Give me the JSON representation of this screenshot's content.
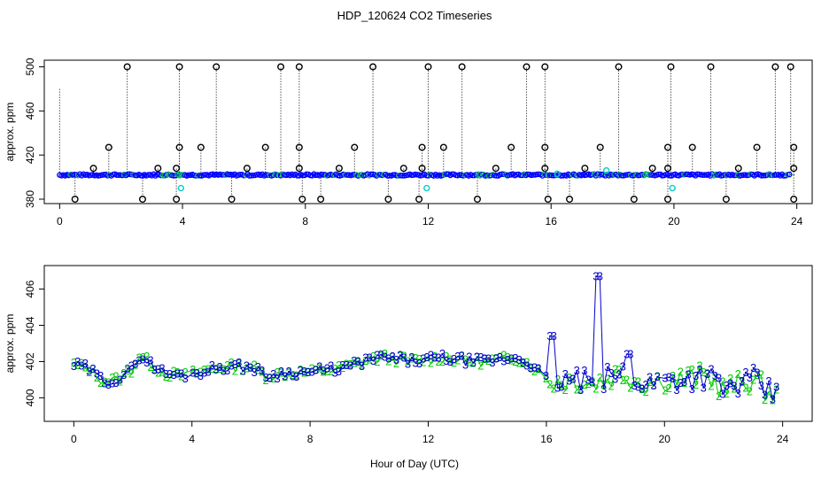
{
  "title": "HDP_120624  CO2 Timeseries",
  "xlabel": "Hour of Day (UTC)",
  "colors": {
    "series2": "#00cc00",
    "series3": "#0000cc",
    "overview_outlier": "#000000",
    "overview_cyan": "#00cccc",
    "overview_line": "#0000ff"
  },
  "chart_data": [
    {
      "type": "scatter",
      "panel": "top",
      "title": "HDP_120624  CO2 Timeseries",
      "ylabel": "approx. ppm",
      "xlim": [
        -0.5,
        24.5
      ],
      "ylim": [
        376,
        506
      ],
      "xticks": [
        0,
        4,
        8,
        12,
        16,
        20,
        24
      ],
      "yticks": [
        380,
        420,
        460,
        500
      ],
      "baseline_series": {
        "name": "baseline",
        "x_start": 0,
        "x_end": 23.8,
        "value": 402
      },
      "outliers_high": [
        2.2,
        3.9,
        5.1,
        7.2,
        7.8,
        10.2,
        12.0,
        13.1,
        15.2,
        15.8,
        18.2,
        19.9,
        21.2,
        23.3,
        23.8
      ],
      "outliers_low": [
        0.5,
        2.7,
        3.8,
        5.6,
        7.9,
        8.5,
        10.7,
        11.7,
        13.6,
        15.9,
        16.6,
        18.7,
        19.8,
        21.7,
        23.9
      ],
      "outliers_427": [
        1.6,
        3.9,
        4.6,
        6.7,
        7.8,
        9.6,
        11.8,
        12.5,
        14.7,
        15.8,
        17.6,
        19.8,
        20.6,
        22.7,
        23.9
      ],
      "outliers_408": [
        1.1,
        3.2,
        3.8,
        6.1,
        7.8,
        9.1,
        11.2,
        11.8,
        14.2,
        15.8,
        17.1,
        19.3,
        19.8,
        22.1,
        23.9
      ],
      "cyan_points": [
        {
          "x": 3.95,
          "y": 390
        },
        {
          "x": 11.95,
          "y": 390
        },
        {
          "x": 19.95,
          "y": 390
        },
        {
          "x": 17.8,
          "y": 406
        },
        {
          "x": 16.2,
          "y": 403
        }
      ]
    },
    {
      "type": "scatter",
      "panel": "bottom",
      "ylabel": "approx. ppm",
      "xlim": [
        -1,
        25
      ],
      "ylim": [
        398.7,
        407.3
      ],
      "xticks": [
        0,
        4,
        8,
        12,
        16,
        20,
        24
      ],
      "yticks": [
        400,
        402,
        404,
        406
      ],
      "series": [
        {
          "name": "2",
          "marker": "2",
          "color": "#00cc00"
        },
        {
          "name": "3",
          "marker": "3",
          "color": "#0000cc"
        }
      ],
      "profile_hours": [
        0,
        0.5,
        1,
        1.5,
        2,
        2.2,
        2.5,
        3,
        3.5,
        4,
        4.5,
        5,
        5.5,
        6,
        6.5,
        7,
        7.5,
        8,
        8.5,
        9,
        9.5,
        10,
        10.5,
        11,
        11.5,
        12,
        12.5,
        13,
        13.5,
        14,
        14.5,
        15,
        15.5,
        16,
        16.5,
        17,
        17.5,
        18,
        18.5,
        19,
        19.5,
        20,
        20.5,
        21,
        21.5,
        22,
        22.5,
        23,
        23.5,
        24
      ],
      "profile_values": [
        401.8,
        401.6,
        400.9,
        401.0,
        401.6,
        402.3,
        402.0,
        401.4,
        401.2,
        401.3,
        401.5,
        401.7,
        401.7,
        401.7,
        401.2,
        401.3,
        401.4,
        401.4,
        401.5,
        401.6,
        401.8,
        402.1,
        402.2,
        402.1,
        402.0,
        402.1,
        402.2,
        402.1,
        402.0,
        402.0,
        402.1,
        402.2,
        401.8,
        401.0,
        400.9,
        401.0,
        400.8,
        401.0,
        401.4,
        401.0,
        400.8,
        401.0,
        401.0,
        401.1,
        401.2,
        400.4,
        400.7,
        401.0,
        400.3,
        400.0
      ],
      "spikes": [
        {
          "x": 16.2,
          "y": 403.4
        },
        {
          "x": 17.8,
          "y": 406.7
        },
        {
          "x": 18.8,
          "y": 402.4
        }
      ]
    }
  ]
}
